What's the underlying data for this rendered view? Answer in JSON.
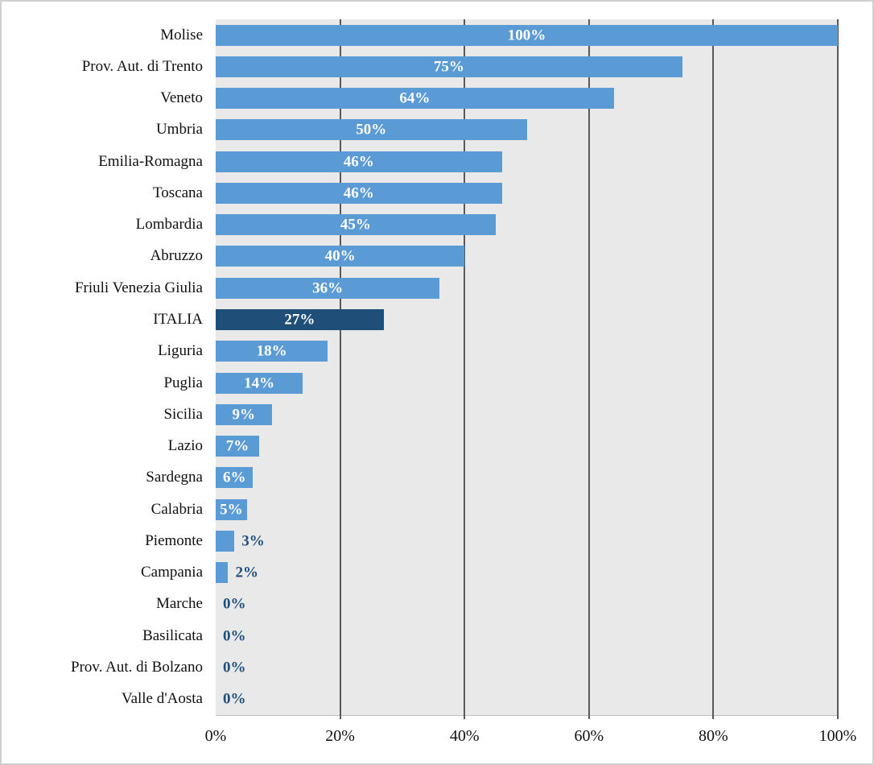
{
  "chart_data": {
    "type": "bar",
    "orientation": "horizontal",
    "title": "",
    "xlabel": "",
    "ylabel": "",
    "xlim": [
      0,
      100
    ],
    "grid": true,
    "x_ticks": [
      "0%",
      "20%",
      "40%",
      "60%",
      "80%",
      "100%"
    ],
    "x_tick_values": [
      0,
      20,
      40,
      60,
      80,
      100
    ],
    "series": [
      {
        "label": "Molise",
        "value": 100,
        "display": "100%",
        "label_position": "inside",
        "highlight": false
      },
      {
        "label": "Prov. Aut. di Trento",
        "value": 75,
        "display": "75%",
        "label_position": "inside",
        "highlight": false
      },
      {
        "label": "Veneto",
        "value": 64,
        "display": "64%",
        "label_position": "inside",
        "highlight": false
      },
      {
        "label": "Umbria",
        "value": 50,
        "display": "50%",
        "label_position": "inside",
        "highlight": false
      },
      {
        "label": "Emilia-Romagna",
        "value": 46,
        "display": "46%",
        "label_position": "inside",
        "highlight": false
      },
      {
        "label": "Toscana",
        "value": 46,
        "display": "46%",
        "label_position": "inside",
        "highlight": false
      },
      {
        "label": "Lombardia",
        "value": 45,
        "display": "45%",
        "label_position": "inside",
        "highlight": false
      },
      {
        "label": "Abruzzo",
        "value": 40,
        "display": "40%",
        "label_position": "inside",
        "highlight": false
      },
      {
        "label": "Friuli Venezia Giulia",
        "value": 36,
        "display": "36%",
        "label_position": "inside",
        "highlight": false
      },
      {
        "label": "ITALIA",
        "value": 27,
        "display": "27%",
        "label_position": "inside",
        "highlight": true
      },
      {
        "label": "Liguria",
        "value": 18,
        "display": "18%",
        "label_position": "inside",
        "highlight": false
      },
      {
        "label": "Puglia",
        "value": 14,
        "display": "14%",
        "label_position": "inside",
        "highlight": false
      },
      {
        "label": "Sicilia",
        "value": 9,
        "display": "9%",
        "label_position": "inside",
        "highlight": false
      },
      {
        "label": "Lazio",
        "value": 7,
        "display": "7%",
        "label_position": "inside",
        "highlight": false
      },
      {
        "label": "Sardegna",
        "value": 6,
        "display": "6%",
        "label_position": "inside",
        "highlight": false
      },
      {
        "label": "Calabria",
        "value": 5,
        "display": "5%",
        "label_position": "inside",
        "highlight": false
      },
      {
        "label": "Piemonte",
        "value": 3,
        "display": "3%",
        "label_position": "outside",
        "highlight": false
      },
      {
        "label": "Campania",
        "value": 2,
        "display": "2%",
        "label_position": "outside",
        "highlight": false
      },
      {
        "label": "Marche",
        "value": 0,
        "display": "0%",
        "label_position": "outside",
        "highlight": false
      },
      {
        "label": "Basilicata",
        "value": 0,
        "display": "0%",
        "label_position": "outside",
        "highlight": false
      },
      {
        "label": "Prov. Aut. di Bolzano",
        "value": 0,
        "display": "0%",
        "label_position": "outside",
        "highlight": false
      },
      {
        "label": "Valle d'Aosta",
        "value": 0,
        "display": "0%",
        "label_position": "outside",
        "highlight": false
      }
    ],
    "colors": {
      "bar": "#5b9bd5",
      "highlight_bar": "#1f4e79",
      "inside_label": "#ffffff",
      "outside_label": "#1f4e79",
      "plot_background": "#e9e9e9",
      "gridline": "#595959",
      "axis_text": "#111111",
      "frame_border": "#cfcfcf"
    },
    "legend": null
  }
}
